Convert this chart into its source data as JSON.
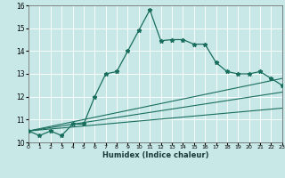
{
  "xlabel": "Humidex (Indice chaleur)",
  "xlim": [
    0,
    23
  ],
  "ylim": [
    10,
    16
  ],
  "yticks": [
    10,
    11,
    12,
    13,
    14,
    15,
    16
  ],
  "xticks": [
    0,
    1,
    2,
    3,
    4,
    5,
    6,
    7,
    8,
    9,
    10,
    11,
    12,
    13,
    14,
    15,
    16,
    17,
    18,
    19,
    20,
    21,
    22,
    23
  ],
  "bg_color": "#c8e8e8",
  "line_color": "#1a6e5e",
  "main_line_x": [
    0,
    1,
    2,
    3,
    4,
    5,
    6,
    7,
    8,
    9,
    10,
    11,
    12,
    13,
    14,
    15,
    16,
    17,
    18,
    19,
    20,
    21,
    22,
    23
  ],
  "main_line_y": [
    10.5,
    10.3,
    10.5,
    10.3,
    10.8,
    10.8,
    12.0,
    13.0,
    13.1,
    14.0,
    14.9,
    15.8,
    14.45,
    14.5,
    14.5,
    14.3,
    14.3,
    13.5,
    13.1,
    13.0,
    13.0,
    13.1,
    12.8,
    12.5
  ],
  "line2_x": [
    0,
    23
  ],
  "line2_y": [
    10.5,
    12.8
  ],
  "line3_x": [
    0,
    23
  ],
  "line3_y": [
    10.5,
    12.2
  ],
  "line4_x": [
    0,
    23
  ],
  "line4_y": [
    10.5,
    11.5
  ]
}
